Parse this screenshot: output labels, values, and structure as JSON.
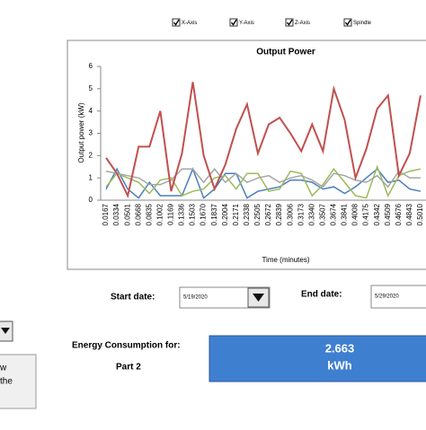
{
  "chart_data": {
    "type": "line",
    "title": "Output Power",
    "y_label": "Output power (kW)",
    "x_label": "Time (minutes)",
    "categories": [
      "0.0167",
      "0.0334",
      "0.0501",
      "0.0668",
      "0.0835",
      "0.1002",
      "0.1169",
      "0.1336",
      "0.1503",
      "0.1670",
      "0.1837",
      "0.2004",
      "0.2171",
      "0.2338",
      "0.2505",
      "0.2672",
      "0.2839",
      "0.3006",
      "0.3173",
      "0.3340",
      "0.3507",
      "0.3674",
      "0.3841",
      "0.4008",
      "0.4175",
      "0.4342",
      "0.4509",
      "0.4676",
      "0.4843",
      "0.5010"
    ],
    "series": [
      {
        "name": "X-Axis",
        "color": "#4a7ebb",
        "values": [
          0.5,
          1.4,
          0.5,
          0.1,
          0.8,
          0.2,
          0.2,
          0.2,
          1.4,
          0.1,
          0.5,
          1.2,
          1.2,
          0.1,
          0.4,
          0.5,
          0.6,
          0.9,
          0.9,
          0.8,
          0.5,
          0.6,
          0.3,
          0.6,
          1.0,
          1.4,
          0.8,
          0.9,
          0.5,
          0.4
        ]
      },
      {
        "name": "Y-Axis",
        "color": "#9bbb59",
        "values": [
          0.6,
          1.2,
          1.0,
          0.8,
          0.3,
          0.9,
          1.0,
          0.2,
          0.4,
          0.5,
          1.0,
          1.1,
          0.5,
          1.2,
          1.2,
          0.4,
          0.5,
          1.3,
          1.2,
          0.2,
          0.7,
          1.4,
          0.8,
          0.2,
          0.1,
          1.5,
          0.2,
          1.1,
          1.3,
          1.4
        ]
      },
      {
        "name": "Z-Axis",
        "color": "#a6a6a6",
        "values": [
          1.3,
          1.2,
          1.1,
          1.0,
          0.7,
          0.7,
          0.9,
          1.4,
          1.4,
          0.8,
          1.4,
          0.8,
          1.2,
          0.8,
          1.0,
          1.1,
          0.8,
          1.0,
          1.1,
          0.9,
          0.6,
          1.2,
          1.1,
          0.9,
          0.8,
          1.1,
          0.6,
          1.3,
          1.0,
          1.0
        ]
      },
      {
        "name": "Spindle",
        "color": "#c0504d",
        "values": [
          1.9,
          1.2,
          0.2,
          2.4,
          2.4,
          4.0,
          0.4,
          2.1,
          5.3,
          2.0,
          0.5,
          1.6,
          3.2,
          4.3,
          2.1,
          3.4,
          3.7,
          3.0,
          2.2,
          3.4,
          2.2,
          5.0,
          3.6,
          1.0,
          2.3,
          4.1,
          4.7,
          1.1,
          2.1,
          4.7
        ]
      }
    ],
    "ylim": [
      0,
      6
    ],
    "yticks": [
      0,
      1,
      2,
      3,
      4,
      5,
      6
    ],
    "grid": false
  },
  "controls": {
    "start_label": "Start date:",
    "start_value": "5/19/2020",
    "end_label": "End date:",
    "end_value": "5/29/2020",
    "energy_label": "Energy Consumption for:",
    "part": "Part 2",
    "energy_value": "2.663",
    "energy_unit": "kWh",
    "left_button": [
      "w",
      "the"
    ]
  }
}
